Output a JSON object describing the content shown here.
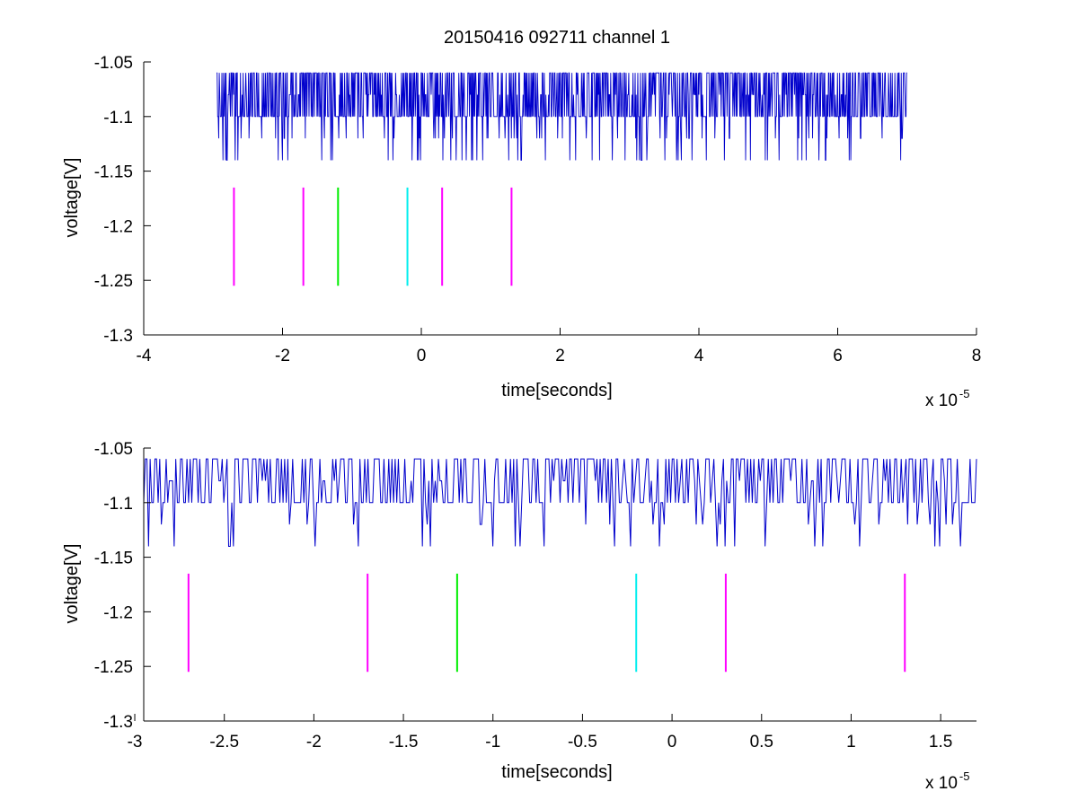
{
  "title": "20150416 092711 channel 1",
  "colors": {
    "signal": "#0000cc",
    "marker_magenta": "#ff00ff",
    "marker_green": "#00ee00",
    "marker_cyan": "#00eeee",
    "axes": "#000000"
  },
  "exponent_base": "x 10",
  "exponent_power": "-5",
  "chart_data": [
    {
      "type": "line",
      "title": "20150416 092711 channel 1",
      "xlabel": "time[seconds]",
      "ylabel": "voltage[V]",
      "x_multiplier": "1e-5",
      "xlim": [
        -4,
        8
      ],
      "ylim": [
        -1.3,
        -1.05
      ],
      "x_ticks": [
        -4,
        -2,
        0,
        2,
        4,
        6,
        8
      ],
      "x_tick_labels": [
        "-4",
        "-2",
        "0",
        "2",
        "4",
        "6",
        "8"
      ],
      "y_ticks": [
        -1.05,
        -1.1,
        -1.15,
        -1.2,
        -1.25,
        -1.3
      ],
      "y_tick_labels": [
        "-1.05",
        "-1.1",
        "-1.15",
        "-1.2",
        "-1.25",
        "-1.3"
      ],
      "grid": false,
      "legend": "none",
      "series": [
        {
          "kind": "signal",
          "x_range": [
            -2.95,
            7.0
          ],
          "levels": [
            -1.06,
            -1.08,
            -1.1,
            -1.12,
            -1.14
          ],
          "baseline": -1.1,
          "color": "#0000cc"
        }
      ],
      "markers": [
        {
          "x": -2.7,
          "y_range": [
            -1.255,
            -1.165
          ],
          "color": "#ff00ff"
        },
        {
          "x": -1.7,
          "y_range": [
            -1.255,
            -1.165
          ],
          "color": "#ff00ff"
        },
        {
          "x": -1.2,
          "y_range": [
            -1.255,
            -1.165
          ],
          "color": "#00ee00"
        },
        {
          "x": -0.2,
          "y_range": [
            -1.255,
            -1.165
          ],
          "color": "#00eeee"
        },
        {
          "x": 0.3,
          "y_range": [
            -1.255,
            -1.165
          ],
          "color": "#ff00ff"
        },
        {
          "x": 1.3,
          "y_range": [
            -1.255,
            -1.165
          ],
          "color": "#ff00ff"
        }
      ]
    },
    {
      "type": "line",
      "xlabel": "time[seconds]",
      "ylabel": "voltage[V]",
      "x_multiplier": "1e-5",
      "xlim": [
        -2.95,
        1.7
      ],
      "ylim": [
        -1.3,
        -1.05
      ],
      "x_ticks": [
        -3,
        -2.5,
        -2,
        -1.5,
        -1,
        -0.5,
        0,
        0.5,
        1,
        1.5
      ],
      "x_tick_labels": [
        "-3",
        "-2.5",
        "-2",
        "-1.5",
        "-1",
        "-0.5",
        "0",
        "0.5",
        "1",
        "1.5"
      ],
      "y_ticks": [
        -1.05,
        -1.1,
        -1.15,
        -1.2,
        -1.25,
        -1.3
      ],
      "y_tick_labels": [
        "-1.05",
        "-1.1",
        "-1.15",
        "-1.2",
        "-1.25",
        "-1.3"
      ],
      "grid": false,
      "legend": "none",
      "series": [
        {
          "kind": "signal",
          "x_range": [
            -2.95,
            1.7
          ],
          "levels": [
            -1.06,
            -1.08,
            -1.1,
            -1.12,
            -1.14
          ],
          "baseline": -1.1,
          "color": "#0000cc"
        }
      ],
      "markers": [
        {
          "x": -2.7,
          "y_range": [
            -1.255,
            -1.165
          ],
          "color": "#ff00ff"
        },
        {
          "x": -1.7,
          "y_range": [
            -1.255,
            -1.165
          ],
          "color": "#ff00ff"
        },
        {
          "x": -1.2,
          "y_range": [
            -1.255,
            -1.165
          ],
          "color": "#00ee00"
        },
        {
          "x": -0.2,
          "y_range": [
            -1.255,
            -1.165
          ],
          "color": "#00eeee"
        },
        {
          "x": 0.3,
          "y_range": [
            -1.255,
            -1.165
          ],
          "color": "#ff00ff"
        },
        {
          "x": 1.3,
          "y_range": [
            -1.255,
            -1.165
          ],
          "color": "#ff00ff"
        }
      ]
    }
  ]
}
